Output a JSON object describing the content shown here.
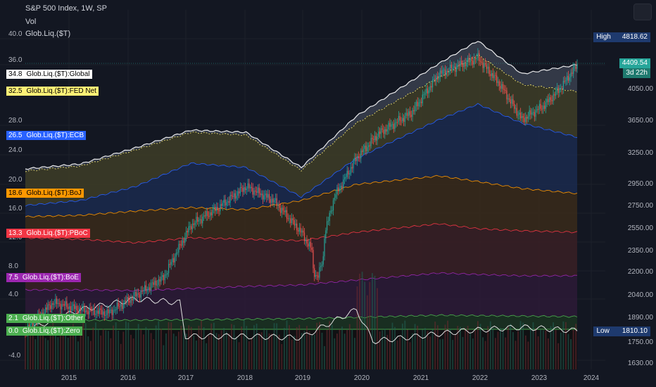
{
  "header": {
    "symbol": "S&P 500 Index, 1W, SP",
    "vol": "Vol",
    "indicator": "Glob.Liq.($T)"
  },
  "chart_data": {
    "type": "area",
    "title": "S&P 500 Index, 1W, SP",
    "x_ticks": [
      "2015",
      "2016",
      "2017",
      "2018",
      "2019",
      "2020",
      "2021",
      "2022",
      "2023",
      "2024"
    ],
    "left_axis_ticks": [
      "40.0",
      "36.0",
      "28.0",
      "24.0",
      "20.0",
      "16.0",
      "12.0",
      "8.0",
      "4.0",
      "-4.0"
    ],
    "right_axis_ticks": [
      "4050.00",
      "3650.00",
      "3250.00",
      "2950.00",
      "2750.00",
      "2550.00",
      "2350.00",
      "2200.00",
      "2040.00",
      "1890.00",
      "1750.00",
      "1630.00"
    ],
    "series": [
      {
        "name": "Glob.Liq.($T):Global",
        "last": "34.8",
        "color": "#ffffff"
      },
      {
        "name": "Glob.Liq.($T):FED Net",
        "last": "32.5",
        "color": "#fff176"
      },
      {
        "name": "Glob.Liq.($T):ECB",
        "last": "26.5",
        "color": "#2962ff"
      },
      {
        "name": "Glob.Liq.($T):BoJ",
        "last": "18.6",
        "color": "#ff9800"
      },
      {
        "name": "Glob.Liq.($T):PBoC",
        "last": "13.3",
        "color": "#f23645"
      },
      {
        "name": "Glob.Liq.($T):BoE",
        "last": "7.5",
        "color": "#9c27b0"
      },
      {
        "name": "Glob.Liq.($T):Other",
        "last": "2.1",
        "color": "#4caf50"
      },
      {
        "name": "Glob.Liq.($T):Zero",
        "last": "0.0",
        "color": "#4caf50"
      }
    ],
    "price": {
      "last": "4409.54",
      "countdown": "3d 22h",
      "high": "4818.62",
      "low": "1810.10"
    },
    "high_label": "High",
    "low_label": "Low",
    "legend": "left"
  },
  "colors": {
    "background": "#131722",
    "price_up": "#26a69a",
    "price_down": "#ef5350"
  }
}
